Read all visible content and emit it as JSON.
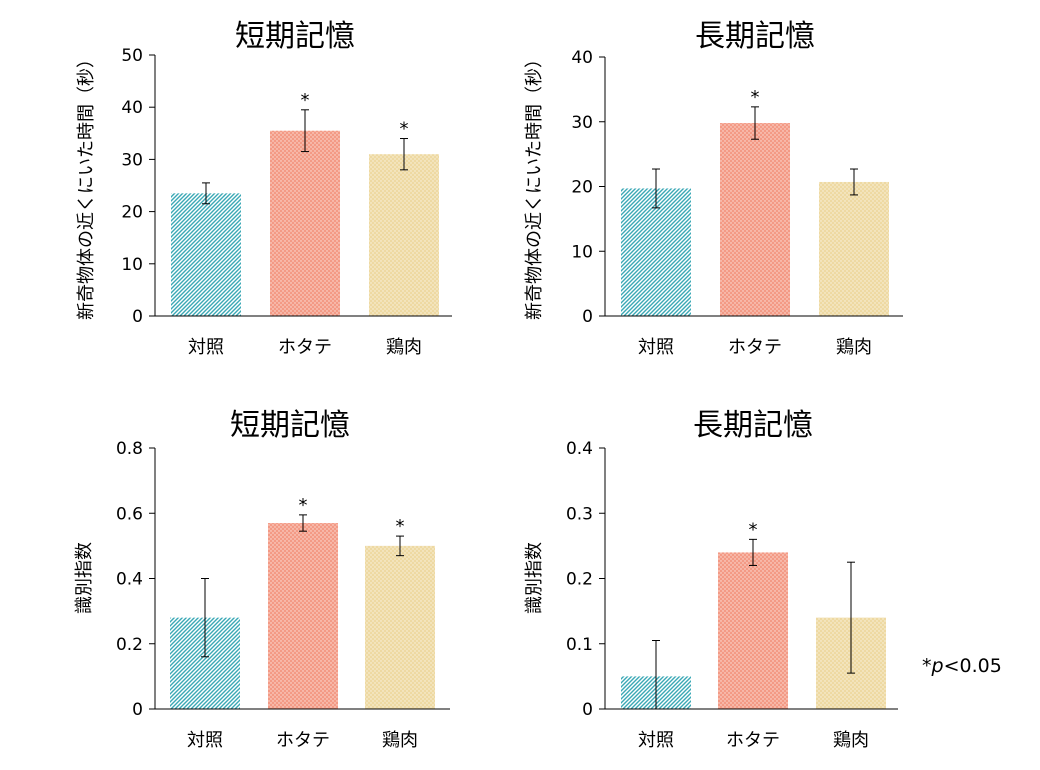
{
  "patterns": {
    "teal": {
      "base": "#ffffff",
      "stroke": "#3aa8b5"
    },
    "salmon": {
      "base": "#f39a85",
      "dot": "#fde2db"
    },
    "tan": {
      "base": "#eed9a2",
      "dot": "#fbf4e2"
    }
  },
  "chart_data": [
    {
      "type": "bar",
      "title": "短期記憶",
      "ylabel": "新奇物体の近くにいた時間（秒）",
      "categories": [
        "対照",
        "ホタテ",
        "鶏肉"
      ],
      "values": [
        23.5,
        35.5,
        31
      ],
      "errors": [
        2,
        4,
        3
      ],
      "significant": [
        false,
        true,
        true
      ],
      "ylim": [
        0,
        50
      ],
      "yticks": [
        0,
        10,
        20,
        30,
        40,
        50
      ],
      "ytick_labels": [
        "0",
        "10",
        "20",
        "30",
        "40",
        "50"
      ],
      "fills": [
        "teal",
        "salmon",
        "tan"
      ],
      "significance_marker": "*"
    },
    {
      "type": "bar",
      "title": "長期記憶",
      "ylabel": "新奇物体の近くにいた時間（秒）",
      "categories": [
        "対照",
        "ホタテ",
        "鶏肉"
      ],
      "values": [
        19.7,
        29.8,
        20.7
      ],
      "errors": [
        3,
        2.5,
        2
      ],
      "significant": [
        false,
        true,
        false
      ],
      "ylim": [
        0,
        40
      ],
      "yticks": [
        0,
        10,
        20,
        30,
        40
      ],
      "ytick_labels": [
        "0",
        "10",
        "20",
        "30",
        "40"
      ],
      "fills": [
        "teal",
        "salmon",
        "tan"
      ],
      "significance_marker": "*"
    },
    {
      "type": "bar",
      "title": "短期記憶",
      "ylabel": "識別指数",
      "categories": [
        "対照",
        "ホタテ",
        "鶏肉"
      ],
      "values": [
        0.28,
        0.57,
        0.5
      ],
      "errors": [
        0.12,
        0.025,
        0.03
      ],
      "significant": [
        false,
        true,
        true
      ],
      "ylim": [
        0,
        0.8
      ],
      "yticks": [
        0,
        0.2,
        0.4,
        0.6,
        0.8
      ],
      "ytick_labels": [
        "0",
        "0.2",
        "0.4",
        "0.6",
        "0.8"
      ],
      "fills": [
        "teal",
        "salmon",
        "tan"
      ],
      "significance_marker": "*"
    },
    {
      "type": "bar",
      "title": "長期記憶",
      "ylabel": "識別指数",
      "categories": [
        "対照",
        "ホタテ",
        "鶏肉"
      ],
      "values": [
        0.05,
        0.24,
        0.14
      ],
      "errors": [
        0.055,
        0.02,
        0.085
      ],
      "significant": [
        false,
        true,
        false
      ],
      "ylim": [
        0,
        0.4
      ],
      "yticks": [
        0,
        0.1,
        0.2,
        0.3,
        0.4
      ],
      "ytick_labels": [
        "0",
        "0.1",
        "0.2",
        "0.3",
        "0.4"
      ],
      "fills": [
        "teal",
        "salmon",
        "tan"
      ],
      "significance_marker": "*"
    }
  ],
  "footnote": {
    "star": "*",
    "p": "p",
    "rest": "<0.05"
  }
}
